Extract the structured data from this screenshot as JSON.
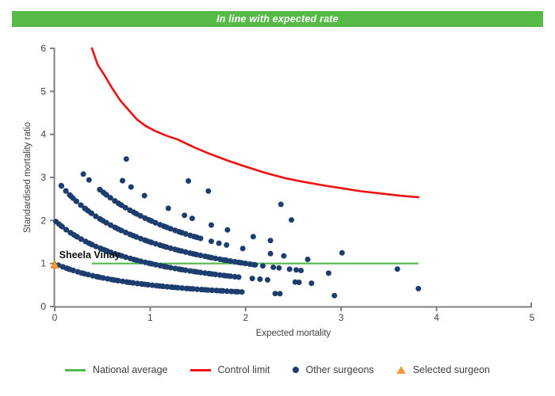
{
  "header": {
    "title": "In line with expected rate",
    "bg_color": "#56BA47",
    "text_color": "#FFFFFF"
  },
  "chart_data": {
    "type": "scatter",
    "title": "In line with expected rate",
    "xlabel": "Expected mortality",
    "ylabel": "Standardised mortality ratio",
    "xlim": [
      0,
      5
    ],
    "ylim": [
      0,
      6
    ],
    "x_ticks": [
      0,
      1,
      2,
      3,
      4,
      5
    ],
    "y_ticks": [
      0,
      1,
      2,
      3,
      4,
      5,
      6
    ],
    "grid": false,
    "legend_position": "bottom",
    "axis_color": "#7F7F7F",
    "tick_label_color": "#3F3F3F",
    "annotation": {
      "text": "Sheela Vinay",
      "x": 0.03,
      "y": 1.2
    },
    "selected_surgeon": {
      "label": "Selected surgeon",
      "marker": "triangle",
      "x": 0.0,
      "y": 0.97,
      "color": "#F49B42",
      "edge_color": "#E2750C"
    },
    "national_average": {
      "label": "National average",
      "color": "#53B94C",
      "y": 1.0,
      "x_start": 0.39,
      "x_end": 3.81
    },
    "control_limit": {
      "label": "Control limit",
      "color": "#EE1111",
      "points": [
        [
          0.39,
          6.0
        ],
        [
          0.45,
          5.62
        ],
        [
          0.52,
          5.38
        ],
        [
          0.6,
          5.08
        ],
        [
          0.69,
          4.78
        ],
        [
          0.78,
          4.55
        ],
        [
          0.86,
          4.35
        ],
        [
          0.95,
          4.2
        ],
        [
          1.05,
          4.08
        ],
        [
          1.17,
          3.97
        ],
        [
          1.29,
          3.88
        ],
        [
          1.45,
          3.71
        ],
        [
          1.6,
          3.57
        ],
        [
          1.8,
          3.4
        ],
        [
          2.0,
          3.25
        ],
        [
          2.2,
          3.11
        ],
        [
          2.4,
          2.99
        ],
        [
          2.6,
          2.9
        ],
        [
          2.8,
          2.82
        ],
        [
          3.0,
          2.75
        ],
        [
          3.2,
          2.68
        ],
        [
          3.4,
          2.63
        ],
        [
          3.6,
          2.58
        ],
        [
          3.81,
          2.54
        ]
      ]
    },
    "other_surgeons": {
      "label": "Other surgeons",
      "color": "#1C3D6E",
      "marker_radius": 3.5,
      "model": "smr = deaths / (expected + 1)",
      "bands": [
        {
          "deaths": 1,
          "dense_range": [
            0.05,
            1.95
          ],
          "dense_count": 86,
          "extra_expected": [
            2.31,
            2.36,
            2.93
          ]
        },
        {
          "deaths": 2,
          "dense_range": [
            0.02,
            1.92
          ],
          "dense_count": 86,
          "extra_expected": [
            2.07,
            2.15,
            2.23,
            2.52,
            2.56,
            2.69,
            3.81
          ]
        },
        {
          "deaths": 3,
          "dense_range": [
            0.06,
            2.1
          ],
          "dense_count": 92,
          "extra_expected": [
            2.18,
            2.29,
            2.35,
            2.46,
            2.53,
            2.58,
            2.87
          ]
        },
        {
          "deaths": 4,
          "dense_range": [
            0.46,
            1.52
          ],
          "dense_count": 48,
          "extra_expected": [
            0.3,
            0.36,
            1.64,
            1.72,
            1.8,
            1.97,
            2.26,
            2.4,
            2.65,
            3.59
          ]
        },
        {
          "deaths": 5,
          "dense_range": null,
          "dense_count": 0,
          "extra_expected": [
            0.71,
            0.8,
            0.94,
            1.19,
            1.36,
            1.44,
            1.64,
            1.81,
            2.08,
            2.26,
            3.01
          ]
        },
        {
          "deaths": 6,
          "dense_range": null,
          "dense_count": 0,
          "extra_expected": [
            0.75
          ]
        },
        {
          "deaths": 7,
          "dense_range": null,
          "dense_count": 0,
          "extra_expected": [
            1.4,
            1.61,
            2.48
          ]
        },
        {
          "deaths": 8,
          "dense_range": null,
          "dense_count": 0,
          "extra_expected": [
            2.37
          ]
        }
      ]
    }
  },
  "legend": {
    "items": [
      {
        "label": "National average",
        "type": "line",
        "color": "#53B94C"
      },
      {
        "label": "Control limit",
        "type": "line",
        "color": "#EE1111"
      },
      {
        "label": "Other surgeons",
        "type": "dot",
        "color": "#1C3D6E"
      },
      {
        "label": "Selected surgeon",
        "type": "triangle",
        "color": "#F49B42"
      }
    ]
  }
}
